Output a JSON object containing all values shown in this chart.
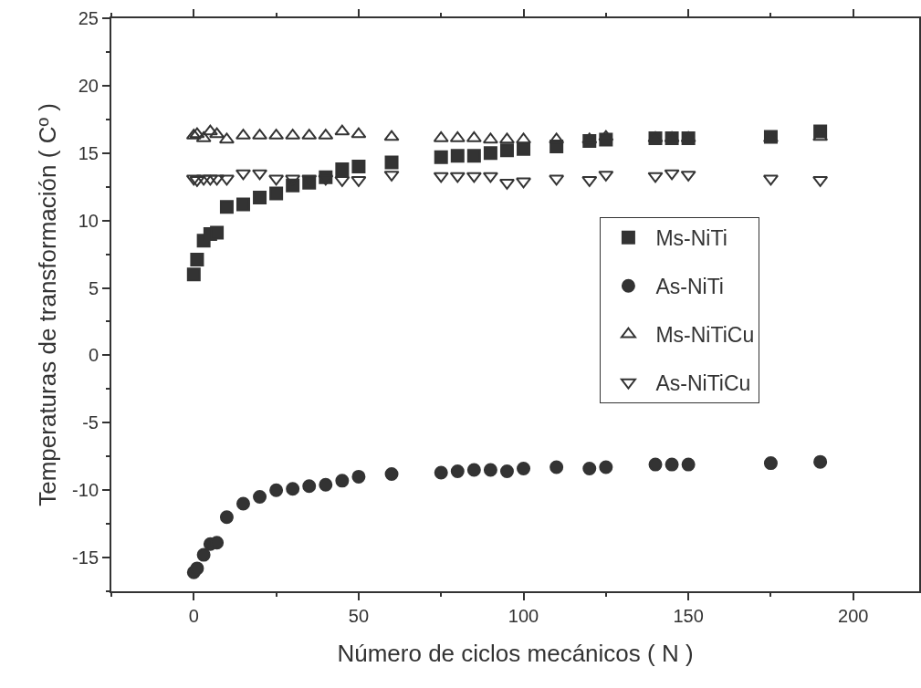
{
  "chart_data": {
    "type": "scatter",
    "xlabel": "Número de ciclos mecánicos ( N )",
    "ylabel": "Temperaturas de transformación ( Cº )",
    "x": [
      0,
      1,
      3,
      5,
      7,
      10,
      15,
      20,
      25,
      30,
      35,
      40,
      45,
      50,
      60,
      75,
      80,
      85,
      90,
      95,
      100,
      110,
      120,
      125,
      140,
      145,
      150,
      175,
      190
    ],
    "series": [
      {
        "name": "Ms-NiTi",
        "color": "#333333",
        "marker": "square",
        "values": [
          6.0,
          7.1,
          8.5,
          9.0,
          9.1,
          11.0,
          11.2,
          11.7,
          12.0,
          12.6,
          12.8,
          13.2,
          13.8,
          14.0,
          14.3,
          14.7,
          14.8,
          14.8,
          15.0,
          15.2,
          15.3,
          15.5,
          15.9,
          16.0,
          16.1,
          16.1,
          16.1,
          16.2,
          16.6
        ]
      },
      {
        "name": "As-NiTi",
        "color": "#333333",
        "marker": "circle",
        "values": [
          -16.1,
          -15.8,
          -14.8,
          -14.0,
          -13.9,
          -12.0,
          -11.0,
          -10.5,
          -10.0,
          -9.9,
          -9.7,
          -9.6,
          -9.3,
          -9.0,
          -8.8,
          -8.7,
          -8.6,
          -8.5,
          -8.5,
          -8.6,
          -8.4,
          -8.3,
          -8.4,
          -8.3,
          -8.1,
          -8.1,
          -8.1,
          -8.0,
          -7.9
        ]
      },
      {
        "name": "Ms-NiTiCu",
        "color": "#333333",
        "marker": "triangle",
        "values": [
          16.3,
          16.4,
          16.1,
          16.6,
          16.4,
          16.0,
          16.3,
          16.3,
          16.3,
          16.3,
          16.3,
          16.3,
          16.6,
          16.4,
          16.2,
          16.1,
          16.1,
          16.1,
          16.0,
          16.0,
          16.0,
          16.0,
          16.0,
          16.2,
          16.1,
          16.1,
          16.1,
          16.1,
          16.2
        ]
      },
      {
        "name": "As-NiTiCu",
        "color": "#333333",
        "marker": "triangle-down",
        "values": [
          13.1,
          13.0,
          13.1,
          13.1,
          13.1,
          13.1,
          13.5,
          13.5,
          13.1,
          13.1,
          13.1,
          13.1,
          13.0,
          13.0,
          13.4,
          13.3,
          13.3,
          13.3,
          13.3,
          12.8,
          12.9,
          13.1,
          13.0,
          13.4,
          13.3,
          13.5,
          13.4,
          13.1,
          13.0
        ]
      }
    ],
    "xlim": [
      -25,
      220
    ],
    "xticks": [
      0,
      50,
      100,
      150,
      200
    ],
    "ylim": [
      -17.5,
      25
    ],
    "yticks": [
      -15,
      -10,
      -5,
      0,
      5,
      10,
      15,
      20,
      25
    ],
    "grid": false,
    "legend": "right"
  }
}
